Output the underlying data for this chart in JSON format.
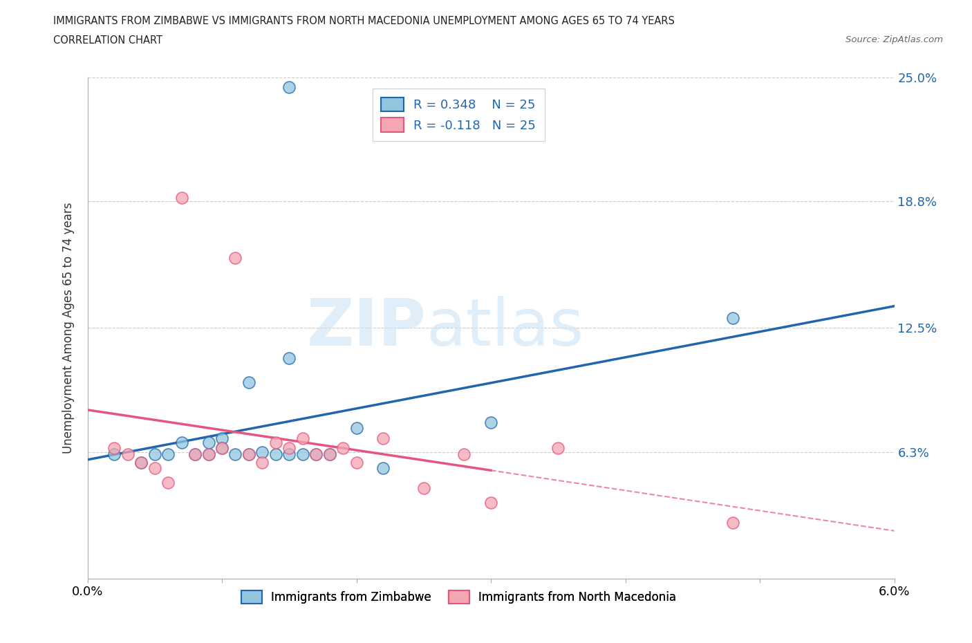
{
  "title_line1": "IMMIGRANTS FROM ZIMBABWE VS IMMIGRANTS FROM NORTH MACEDONIA UNEMPLOYMENT AMONG AGES 65 TO 74 YEARS",
  "title_line2": "CORRELATION CHART",
  "source_text": "Source: ZipAtlas.com",
  "ylabel": "Unemployment Among Ages 65 to 74 years",
  "xmin": 0.0,
  "xmax": 0.06,
  "ymin": 0.0,
  "ymax": 0.25,
  "yticks": [
    0.0,
    0.063,
    0.125,
    0.188,
    0.25
  ],
  "ytick_labels": [
    "",
    "6.3%",
    "12.5%",
    "18.8%",
    "25.0%"
  ],
  "xticks": [
    0.0,
    0.01,
    0.02,
    0.03,
    0.04,
    0.05,
    0.06
  ],
  "xtick_labels": [
    "0.0%",
    "",
    "",
    "",
    "",
    "",
    "6.0%"
  ],
  "series1_color": "#92c5de",
  "series2_color": "#f4a6b2",
  "trend1_color": "#2166ac",
  "trend2_color": "#e75480",
  "R1": 0.348,
  "N1": 25,
  "R2": -0.118,
  "N2": 25,
  "legend_label1": "Immigrants from Zimbabwe",
  "legend_label2": "Immigrants from North Macedonia",
  "watermark_zip": "ZIP",
  "watermark_atlas": "atlas",
  "zimbabwe_x": [
    0.002,
    0.004,
    0.005,
    0.006,
    0.007,
    0.008,
    0.009,
    0.009,
    0.01,
    0.01,
    0.011,
    0.012,
    0.012,
    0.013,
    0.014,
    0.015,
    0.015,
    0.016,
    0.017,
    0.018,
    0.02,
    0.022,
    0.03,
    0.048,
    0.015
  ],
  "zimbabwe_y": [
    0.062,
    0.058,
    0.062,
    0.062,
    0.068,
    0.062,
    0.062,
    0.068,
    0.07,
    0.065,
    0.062,
    0.098,
    0.062,
    0.063,
    0.062,
    0.062,
    0.11,
    0.062,
    0.062,
    0.062,
    0.075,
    0.055,
    0.078,
    0.13,
    0.245
  ],
  "macedonia_x": [
    0.002,
    0.003,
    0.004,
    0.005,
    0.006,
    0.007,
    0.008,
    0.009,
    0.01,
    0.011,
    0.012,
    0.013,
    0.014,
    0.015,
    0.016,
    0.017,
    0.018,
    0.019,
    0.02,
    0.022,
    0.025,
    0.028,
    0.03,
    0.035,
    0.048
  ],
  "macedonia_y": [
    0.065,
    0.062,
    0.058,
    0.055,
    0.048,
    0.19,
    0.062,
    0.062,
    0.065,
    0.16,
    0.062,
    0.058,
    0.068,
    0.065,
    0.07,
    0.062,
    0.062,
    0.065,
    0.058,
    0.07,
    0.045,
    0.062,
    0.038,
    0.065,
    0.028
  ],
  "trend1_solid_end": 0.06,
  "trend2_solid_end": 0.03,
  "trend2_dash_start": 0.03,
  "trend2_dash_end": 0.06
}
